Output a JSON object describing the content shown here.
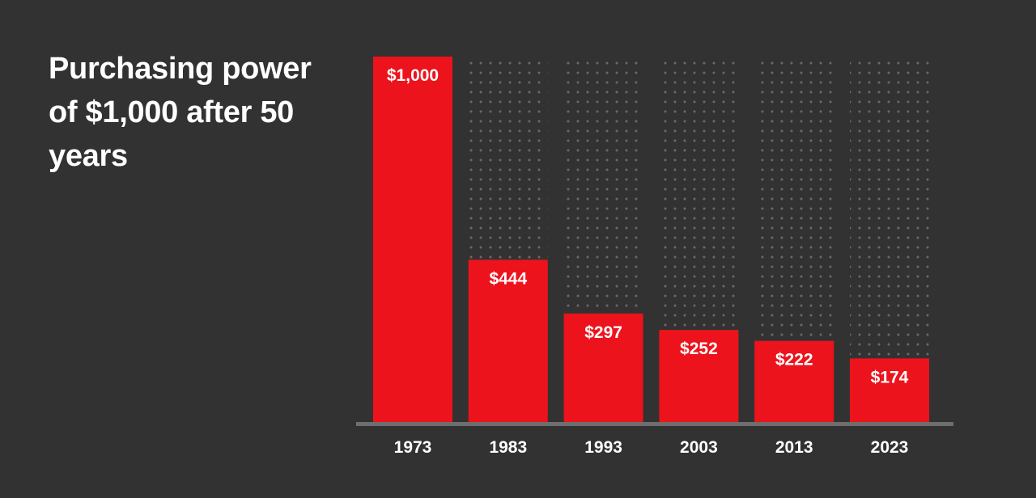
{
  "chart_data": {
    "type": "bar",
    "title": "Purchasing power of $1,000 after 50 years",
    "categories": [
      "1973",
      "1983",
      "1993",
      "2003",
      "2013",
      "2023"
    ],
    "values": [
      1000,
      444,
      297,
      252,
      222,
      174
    ],
    "value_labels": [
      "$1,000",
      "$444",
      "$297",
      "$252",
      "$222",
      "$174"
    ],
    "ylim": [
      0,
      1000
    ],
    "xlabel": "",
    "ylabel": "",
    "grid": false,
    "reference_value": 1000,
    "colors": {
      "background": "#323232",
      "bar": "#ed131c",
      "reference_dots": "#6a6a6a",
      "axis": "#6e6e6e",
      "text": "#ffffff"
    }
  }
}
